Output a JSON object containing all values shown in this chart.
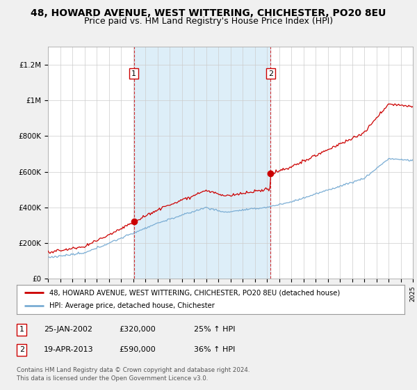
{
  "title": "48, HOWARD AVENUE, WEST WITTERING, CHICHESTER, PO20 8EU",
  "subtitle": "Price paid vs. HM Land Registry's House Price Index (HPI)",
  "title_fontsize": 10,
  "subtitle_fontsize": 9,
  "ylim": [
    0,
    1300000
  ],
  "yticks": [
    0,
    200000,
    400000,
    600000,
    800000,
    1000000,
    1200000
  ],
  "ytick_labels": [
    "£0",
    "£200K",
    "£400K",
    "£600K",
    "£800K",
    "£1M",
    "£1.2M"
  ],
  "background_color": "#f0f0f0",
  "plot_bg_color": "#ffffff",
  "grid_color": "#cccccc",
  "red_color": "#cc0000",
  "blue_color": "#7aadd4",
  "shade_color": "#ddeef8",
  "sale1_year": 2002.07,
  "sale1_price": 320000,
  "sale2_year": 2013.3,
  "sale2_price": 590000,
  "legend_line1": "48, HOWARD AVENUE, WEST WITTERING, CHICHESTER, PO20 8EU (detached house)",
  "legend_line2": "HPI: Average price, detached house, Chichester",
  "table_row1": [
    "1",
    "25-JAN-2002",
    "£320,000",
    "25% ↑ HPI"
  ],
  "table_row2": [
    "2",
    "19-APR-2013",
    "£590,000",
    "36% ↑ HPI"
  ],
  "footer1": "Contains HM Land Registry data © Crown copyright and database right 2024.",
  "footer2": "This data is licensed under the Open Government Licence v3.0.",
  "xstart": 1995,
  "xend": 2025
}
